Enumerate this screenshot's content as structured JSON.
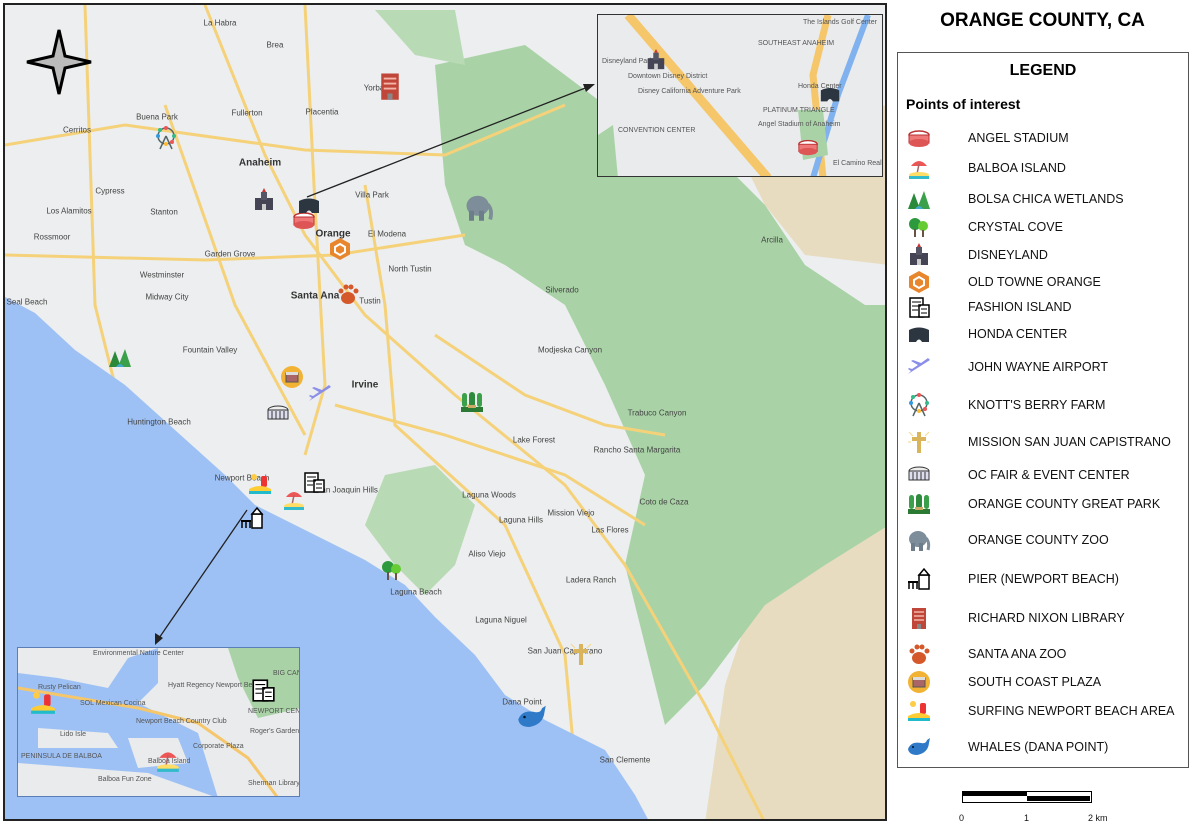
{
  "title": "ORANGE COUNTY, CA",
  "legend": {
    "title": "LEGEND",
    "subtitle": "Points of interest",
    "items": [
      {
        "label": "ANGEL STADIUM",
        "icon": "stadium-icon"
      },
      {
        "label": "BALBOA ISLAND",
        "icon": "beach-umbrella-icon"
      },
      {
        "label": "BOLSA CHICA WETLANDS",
        "icon": "wetlands-icon"
      },
      {
        "label": "CRYSTAL COVE",
        "icon": "trees-icon"
      },
      {
        "label": "DISNEYLAND",
        "icon": "castle-icon"
      },
      {
        "label": "OLD TOWNE ORANGE",
        "icon": "hexagon-icon"
      },
      {
        "label": "FASHION ISLAND",
        "icon": "mall-icon"
      },
      {
        "label": "HONDA CENTER",
        "icon": "arena-icon"
      },
      {
        "label": "JOHN WAYNE AIRPORT",
        "icon": "airplane-icon"
      },
      {
        "label": "KNOTT'S BERRY FARM",
        "icon": "ferris-wheel-icon"
      },
      {
        "label": "MISSION SAN JUAN CAPISTRANO",
        "icon": "cross-icon"
      },
      {
        "label": "OC FAIR & EVENT CENTER",
        "icon": "fair-stadium-icon"
      },
      {
        "label": "ORANGE COUNTY GREAT PARK",
        "icon": "park-icon"
      },
      {
        "label": "ORANGE COUNTY ZOO",
        "icon": "elephant-icon"
      },
      {
        "label": "PIER (NEWPORT BEACH)",
        "icon": "pier-icon"
      },
      {
        "label": "RICHARD NIXON LIBRARY",
        "icon": "library-building-icon"
      },
      {
        "label": "SANTA ANA ZOO",
        "icon": "paw-icon"
      },
      {
        "label": "SOUTH COAST PLAZA",
        "icon": "shopping-plaza-icon"
      },
      {
        "label": "SURFING NEWPORT BEACH AREA",
        "icon": "surfing-icon"
      },
      {
        "label": "WHALES (DANA POINT)",
        "icon": "whale-icon"
      }
    ]
  },
  "scale_bar": {
    "labels": [
      "0",
      "1",
      "2 km"
    ]
  },
  "map": {
    "colors": {
      "land": "#eceeef",
      "ocean": "#9ec1f5",
      "hills": "#a9d3a6",
      "desert": "#e8dcc0",
      "roads": "#f5d27a"
    },
    "labels": [
      "La Habra",
      "Brea",
      "Fullerton",
      "Placentia",
      "Buena Park",
      "Cerritos",
      "Anaheim",
      "Cypress",
      "Stanton",
      "Los Alamitos",
      "Garden Grove",
      "Orange",
      "Villa Park",
      "El Modena",
      "Westminster",
      "Midway City",
      "Santa Ana",
      "Tustin",
      "North Tustin",
      "Fountain Valley",
      "Huntington Beach",
      "Irvine",
      "Seal Beach",
      "Rossmoor",
      "Lake Forest",
      "Laguna Woods",
      "Laguna Hills",
      "Mission Viejo",
      "Aliso Viejo",
      "Laguna Niguel",
      "Laguna Beach",
      "Dana Point",
      "San Clemente",
      "San Juan Capistrano",
      "Rancho Santa Margarita",
      "Coto de Caza",
      "Ladera Ranch",
      "Las Flores",
      "Trabuco Canyon",
      "Newport Beach",
      "San Joaquin Hills",
      "Silverado",
      "Modjeska Canyon",
      "Arcilla",
      "Yorba"
    ],
    "inset_ne_labels": [
      "SOUTHEAST ANAHEIM",
      "Disneyland Park",
      "Downtown Disney District",
      "Disney California Adventure Park",
      "CONVENTION CENTER",
      "PLATINUM TRIANGLE",
      "Angel Stadium of Anaheim",
      "Honda Center",
      "The Islands Golf Center",
      "El Camino Real Park"
    ],
    "inset_sw_labels": [
      "Environmental Nature Center",
      "Rusty Pelican",
      "SOL Mexican Cocina",
      "Hyatt Regency Newport Beach",
      "Lido Isle",
      "PENINSULA DE BALBOA",
      "Balboa Island",
      "Balboa Fun Zone",
      "Newport Beach Country Club",
      "Corporate Plaza",
      "NEWPORT CENTER",
      "BIG CANYON",
      "Roger's Gardens",
      "Sherman Library & Gardens"
    ]
  }
}
